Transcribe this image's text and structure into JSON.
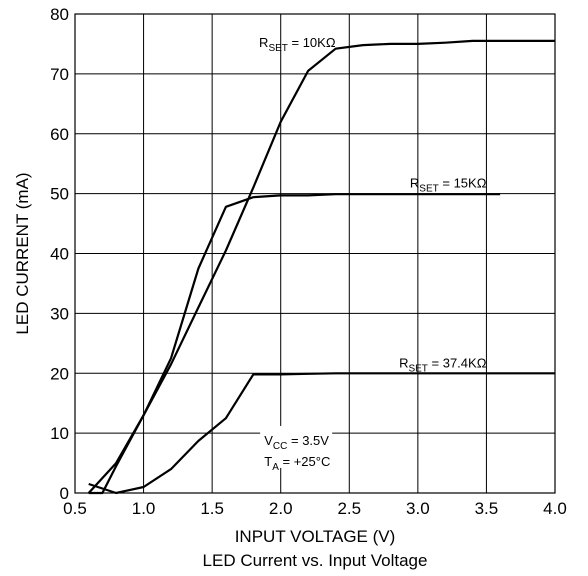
{
  "chart_data": {
    "type": "line",
    "title": "",
    "caption": "LED Current vs. Input Voltage",
    "xlabel": "INPUT VOLTAGE (V)",
    "ylabel": "LED CURRENT (mA)",
    "xlim": [
      0.5,
      4.0
    ],
    "ylim": [
      0,
      80
    ],
    "x_ticks": [
      "0.5",
      "1.0",
      "1.5",
      "2.0",
      "2.5",
      "3.0",
      "3.5",
      "4.0"
    ],
    "y_ticks": [
      "0",
      "10",
      "20",
      "30",
      "40",
      "50",
      "60",
      "70",
      "80"
    ],
    "grid": true,
    "line_color": "#000000",
    "grid_color": "#000000",
    "series": [
      {
        "name_main": "R",
        "name_sub": "SET",
        "name_rest": " = 10KΩ",
        "label_anchor": {
          "x": 2.4,
          "y": 74.5
        },
        "x": [
          0.6,
          0.7,
          0.8,
          1.0,
          1.2,
          1.4,
          1.6,
          1.8,
          2.0,
          2.2,
          2.4,
          2.6,
          2.8,
          3.0,
          3.2,
          3.4,
          3.6,
          3.8,
          4.0
        ],
        "y": [
          0,
          0,
          4.5,
          13,
          21.5,
          31,
          40.5,
          51,
          62,
          70.5,
          74.2,
          74.8,
          75,
          75,
          75.2,
          75.5,
          75.5,
          75.5,
          75.5
        ]
      },
      {
        "name_main": "R",
        "name_sub": "SET",
        "name_rest": " = 15KΩ",
        "label_anchor": {
          "x": 3.5,
          "y": 51
        },
        "x": [
          0.6,
          0.8,
          1.0,
          1.2,
          1.4,
          1.6,
          1.8,
          2.0,
          2.2,
          2.4,
          2.6,
          2.8,
          3.0,
          3.2,
          3.4,
          3.6
        ],
        "y": [
          0,
          5,
          13,
          22.5,
          37.5,
          47.8,
          49.4,
          49.7,
          49.7,
          49.9,
          49.9,
          49.9,
          49.9,
          49.9,
          49.9,
          49.9
        ]
      },
      {
        "name_main": "R",
        "name_sub": "SET",
        "name_rest": " = 37.4KΩ",
        "label_anchor": {
          "x": 3.5,
          "y": 21
        },
        "x": [
          0.6,
          0.8,
          1.0,
          1.2,
          1.4,
          1.6,
          1.8,
          2.0,
          2.2,
          2.4,
          2.6,
          2.8,
          3.0,
          3.2,
          3.4,
          3.6,
          3.8,
          4.0
        ],
        "y": [
          1.5,
          0,
          1,
          4,
          8.7,
          12.5,
          19.8,
          19.8,
          19.9,
          20,
          20,
          20,
          20,
          20,
          20,
          20,
          20,
          20
        ]
      }
    ],
    "annotations": [
      {
        "main": "V",
        "sub": "CC",
        "rest": " = 3.5V"
      },
      {
        "main": "T",
        "sub": "A",
        "rest": " = +25°C"
      }
    ]
  }
}
